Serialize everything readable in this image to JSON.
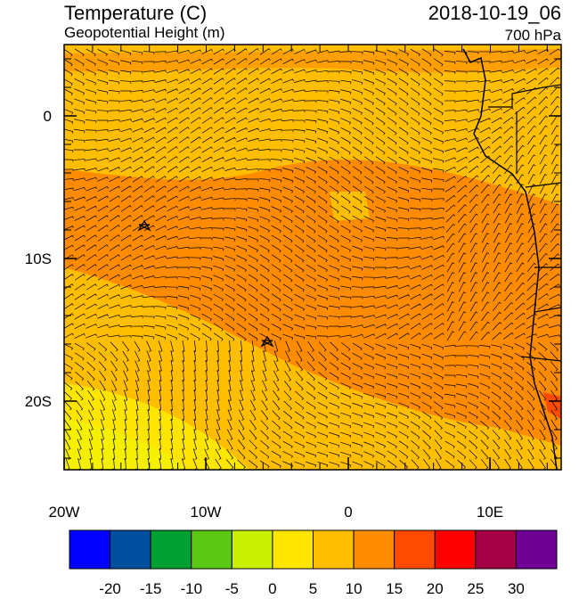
{
  "header": {
    "title": "Temperature (C)",
    "subtitle": "Geopotential Height (m)",
    "date": "2018-10-19_06",
    "level": "700 hPa"
  },
  "map": {
    "y_labels": [
      "0",
      "10S",
      "20S"
    ],
    "x_labels": [
      "20W",
      "10W",
      "0",
      "10E"
    ]
  },
  "colorbar": {
    "colors": [
      "#0000ff",
      "#00509f",
      "#00a032",
      "#5ac814",
      "#c8f000",
      "#ffe600",
      "#ffbe00",
      "#ff8c00",
      "#ff4b00",
      "#ff0000",
      "#a50046",
      "#6e0096"
    ],
    "labels": [
      "-20",
      "-15",
      "-10",
      "-5",
      "0",
      "5",
      "10",
      "15",
      "20",
      "25",
      "30"
    ]
  }
}
